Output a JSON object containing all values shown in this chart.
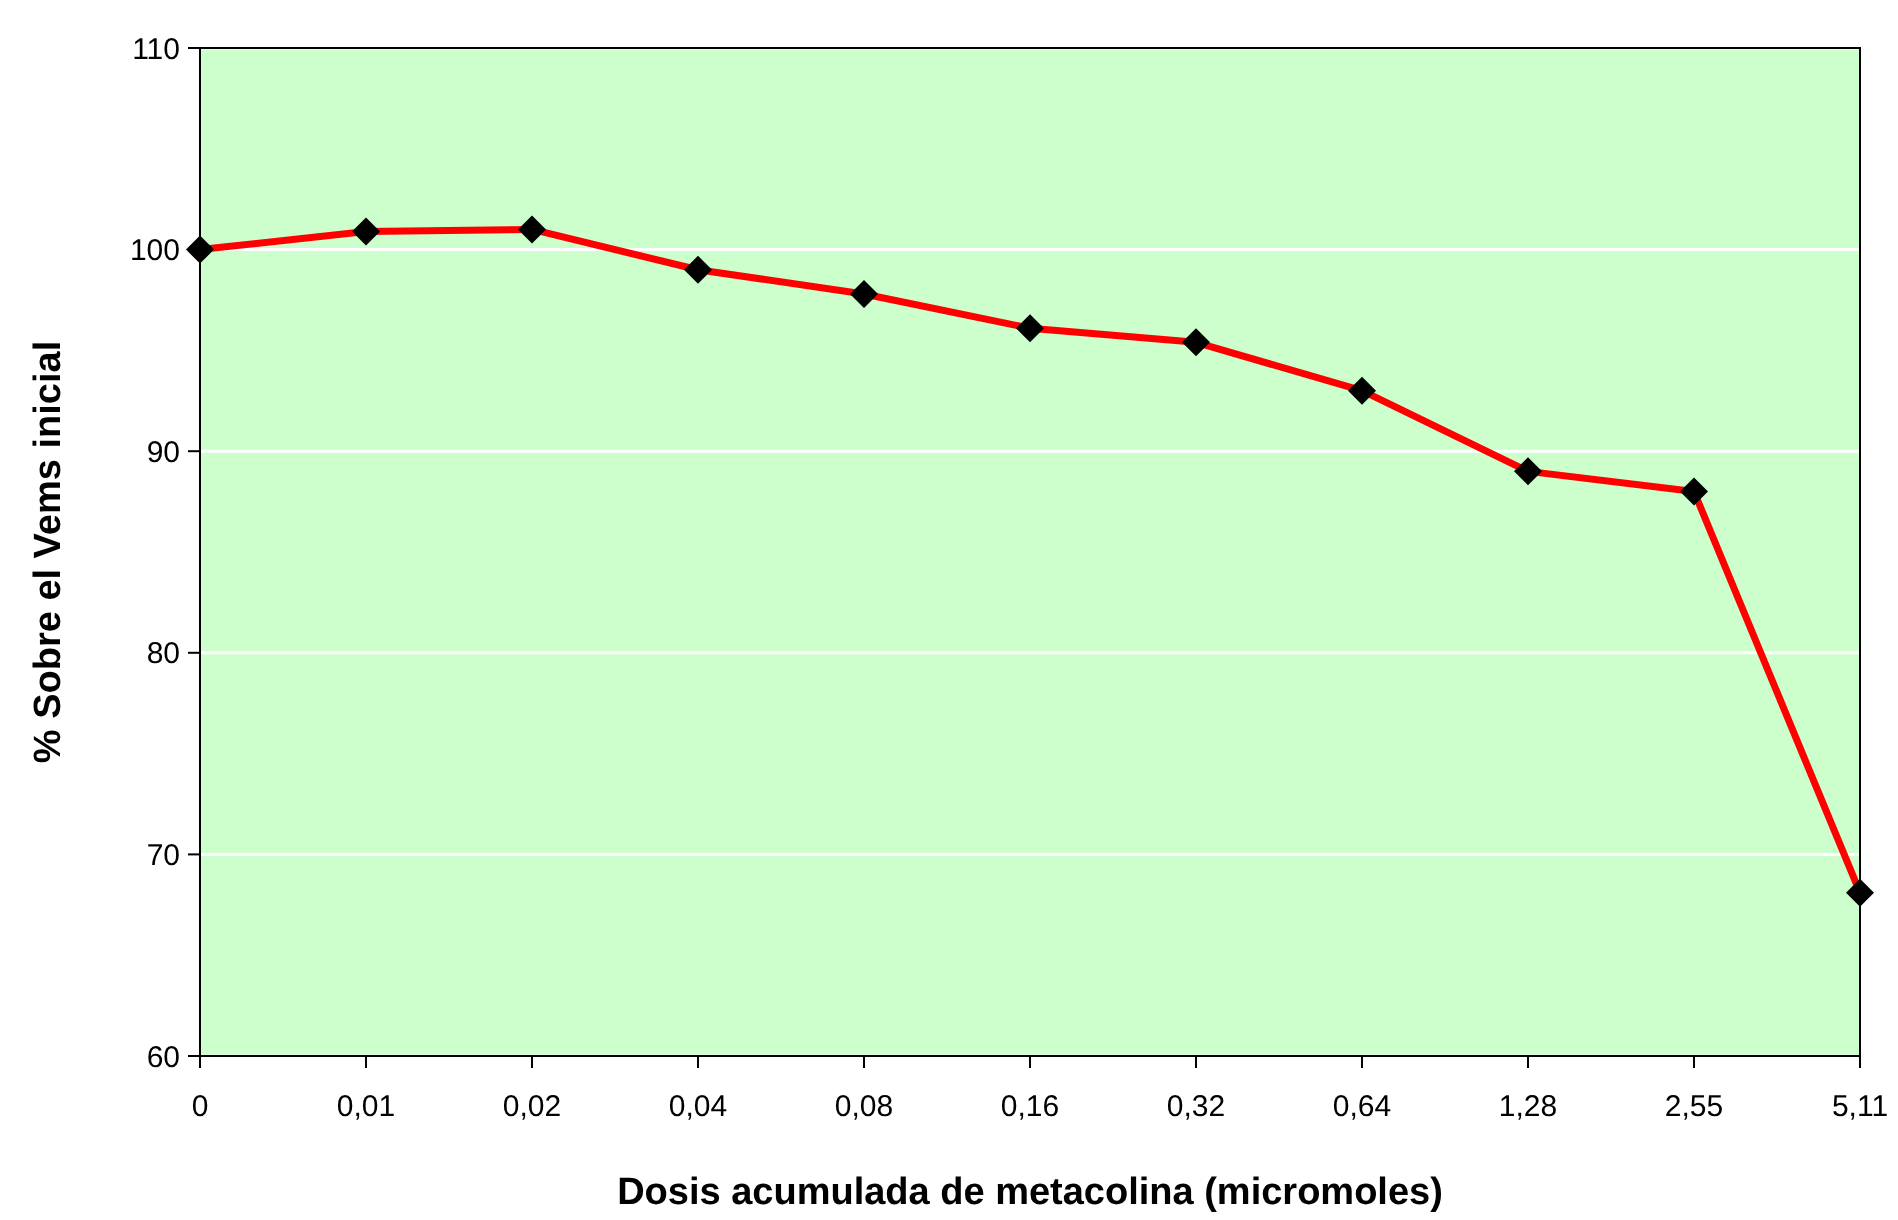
{
  "chart_data": {
    "type": "line",
    "xlabel": "Dosis acumulada de metacolina (micromoles)",
    "ylabel": "% Sobre el Vems inicial",
    "categories": [
      "0",
      "0,01",
      "0,02",
      "0,04",
      "0,08",
      "0,16",
      "0,32",
      "0,64",
      "1,28",
      "2,55",
      "5,11"
    ],
    "series": [
      {
        "color": "#ff0000",
        "values": [
          100,
          100.9,
          101,
          99,
          97.8,
          96.1,
          95.4,
          93,
          89,
          88,
          68.1
        ]
      }
    ],
    "ylim": [
      60,
      110
    ],
    "yticks": [
      60,
      70,
      80,
      90,
      100,
      110
    ],
    "grid": "y",
    "marker": "diamond",
    "line_style": "solid"
  }
}
